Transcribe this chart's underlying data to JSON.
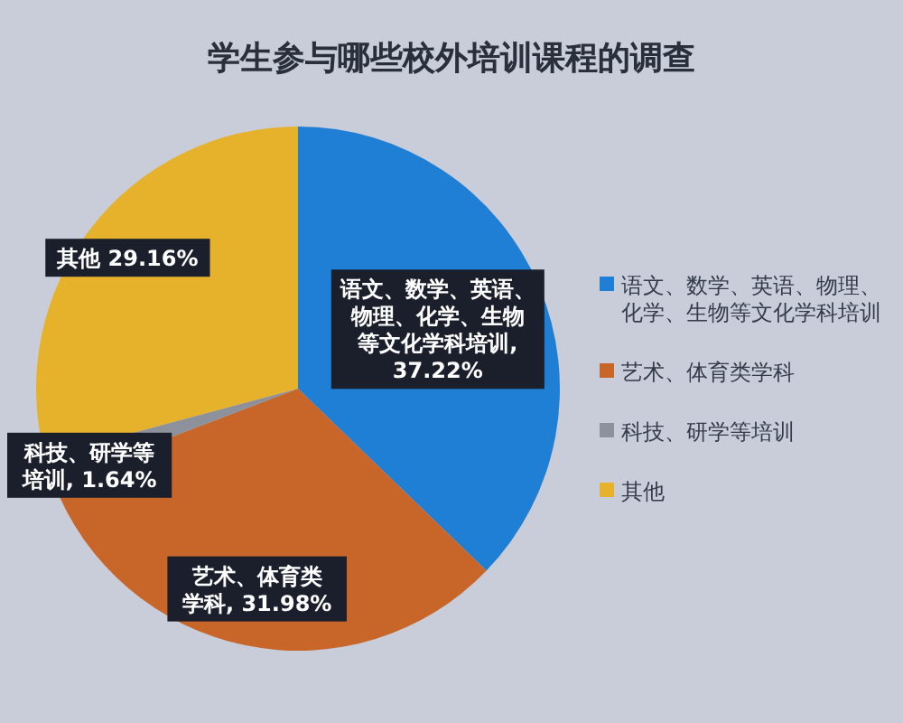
{
  "chart_data": {
    "type": "pie",
    "title": "学生参与哪些校外培训课程的调查",
    "categories": [
      "语文、数学、英语、物理、化学、生物等文化学科培训",
      "艺术、体育类学科",
      "科技、研学等培训",
      "其他"
    ],
    "values": [
      37.22,
      31.98,
      1.64,
      29.16
    ],
    "colors": [
      "#1f7fd4",
      "#c8662a",
      "#8c919c",
      "#e6b22c"
    ],
    "value_labels": [
      "语文、数学、英语、物理、化学、生物等文化学科培训, 37.22%",
      "艺术、体育类学科, 31.98%",
      "科技、研学等培训, 1.64%",
      "其他 29.16%"
    ],
    "legend": "right"
  }
}
